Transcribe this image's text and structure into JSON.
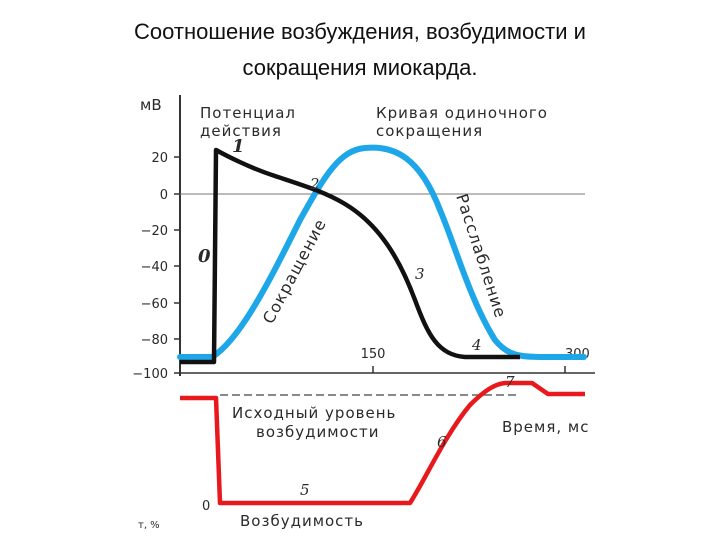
{
  "title": {
    "line1": "Соотношение возбуждения, возбудимости и",
    "line2": "сокращения миокарда."
  },
  "axis": {
    "unit": "мВ",
    "y_ticks": [
      "20",
      "0",
      "−20",
      "−40",
      "−60",
      "−80",
      "−100"
    ],
    "x_ticks": [
      "150",
      "300"
    ],
    "lower_zero": "0",
    "lower_unit": "т, %"
  },
  "labels": {
    "action_potential_1": "Потенциал",
    "action_potential_2": "действия",
    "contraction_curve_1": "Кривая одиночного",
    "contraction_curve_2": "сокращения",
    "contraction": "Сокращение",
    "relaxation": "Расслабление",
    "baseline_1": "Исходный уровень",
    "baseline_2": "возбудимости",
    "time": "Время, мс",
    "excitability": "Возбудимость"
  },
  "phases": [
    "0",
    "1",
    "2",
    "3",
    "4",
    "5",
    "6",
    "7"
  ],
  "colors": {
    "action_potential": "#111111",
    "contraction": "#1ea7e8",
    "excitability": "#e8191c",
    "axis": "#333333"
  }
}
